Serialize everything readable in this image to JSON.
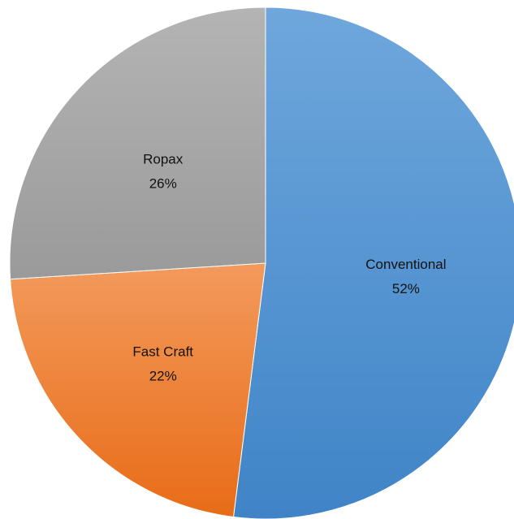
{
  "chart_data": {
    "type": "pie",
    "legend": "none",
    "colors_note": "slices use vertical gradients",
    "slices": [
      {
        "name": "Conventional",
        "value": 52,
        "label": "Conventional",
        "percent_label": "52%",
        "color_top": "#6fa7dc",
        "color_bottom": "#3f84c7"
      },
      {
        "name": "Fast Craft",
        "value": 22,
        "label": "Fast Craft",
        "percent_label": "22%",
        "color_top": "#f39a5c",
        "color_bottom": "#e86c17"
      },
      {
        "name": "Ropax",
        "value": 26,
        "label": "Ropax",
        "percent_label": "26%",
        "color_top": "#b4b4b4",
        "color_bottom": "#9a9a9a"
      }
    ]
  }
}
